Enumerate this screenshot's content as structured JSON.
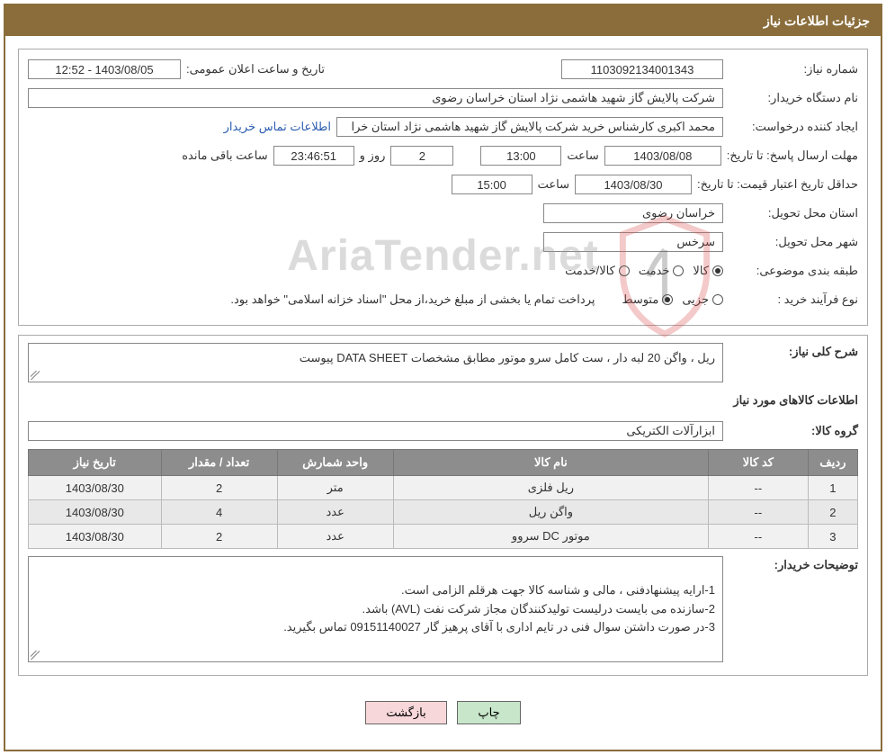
{
  "header": {
    "title": "جزئیات اطلاعات نیاز"
  },
  "section1": {
    "need_no_label": "شماره نیاز:",
    "need_no": "1103092134001343",
    "public_date_label": "تاریخ و ساعت اعلان عمومی:",
    "public_date": "1403/08/05 - 12:52",
    "buyer_org_label": "نام دستگاه خریدار:",
    "buyer_org": "شرکت پالایش گاز شهید هاشمی نژاد   استان خراسان رضوی",
    "creator_label": "ایجاد کننده درخواست:",
    "creator": "محمد اکبری کارشناس خرید شرکت پالایش گاز شهید هاشمی نژاد   استان خرا",
    "buyer_contact_link": "اطلاعات تماس خریدار",
    "deadline_label": "مهلت ارسال پاسخ:",
    "until_label": "تا تاریخ:",
    "deadline_date": "1403/08/08",
    "time_label": "ساعت",
    "deadline_time": "13:00",
    "days_and_label": "روز و",
    "days_remaining": "2",
    "countdown": "23:46:51",
    "remaining_label": "ساعت باقی مانده",
    "validity_label": "حداقل تاریخ اعتبار قیمت:",
    "validity_date": "1403/08/30",
    "validity_time": "15:00",
    "province_label": "استان محل تحویل:",
    "province": "خراسان رضوی",
    "city_label": "شهر محل تحویل:",
    "city": "سرخس",
    "category_label": "طبقه بندی موضوعی:",
    "cat_goods": "کالا",
    "cat_service": "خدمت",
    "cat_goods_service": "کالا/خدمت",
    "process_label": "نوع فرآیند خرید :",
    "process_partial": "جزیی",
    "process_medium": "متوسط",
    "process_note": "پرداخت تمام یا بخشی از مبلغ خرید،از محل \"اسناد خزانه اسلامی\" خواهد بود."
  },
  "section2": {
    "overall_desc_label": "شرح کلی نیاز:",
    "overall_desc": "ریل ، واگن 20 لبه دار ، ست کامل سرو موتور مطابق مشخصات DATA SHEET پیوست",
    "goods_info_label": "اطلاعات کالاهای مورد نیاز",
    "group_label": "گروه کالا:",
    "group_value": "ابزارآلات الکتریکی",
    "table": {
      "columns": [
        "ردیف",
        "کد کالا",
        "نام کالا",
        "واحد شمارش",
        "تعداد / مقدار",
        "تاریخ نیاز"
      ],
      "rows": [
        [
          "1",
          "--",
          "ریل فلزی",
          "متر",
          "2",
          "1403/08/30"
        ],
        [
          "2",
          "--",
          "واگن ریل",
          "عدد",
          "4",
          "1403/08/30"
        ],
        [
          "3",
          "--",
          "موتور DC سروو",
          "عدد",
          "2",
          "1403/08/30"
        ]
      ]
    },
    "buyer_notes_label": "توضیحات خریدار:",
    "buyer_notes": "1-ارایه پیشنهادفنی ، مالی و شناسه کالا جهت هرقلم الزامی است.\n2-سازنده می بایست درلیست تولیدکنندگان مجاز شرکت نفت (AVL)  باشد.\n3-در صورت داشتن سوال فنی در تایم اداری با آقای پرهیز گار 09151140027 تماس بگیرید."
  },
  "buttons": {
    "print": "چاپ",
    "back": "بازگشت"
  },
  "watermark": "AriaTender.net",
  "styling": {
    "header_bg": "#8a6d3b",
    "border_color": "#8a6d3b",
    "table_header_bg": "#8d8d8d",
    "btn_green": "#c8e6c9",
    "btn_pink": "#f8d7da",
    "link_color": "#2a5db0"
  }
}
